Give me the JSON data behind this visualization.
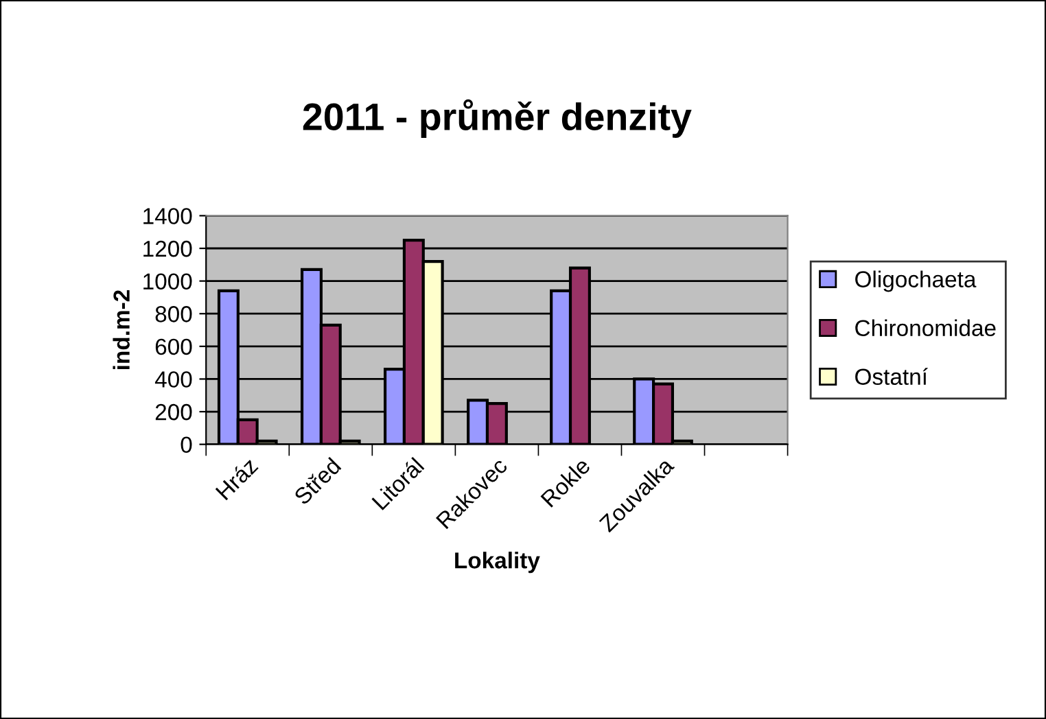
{
  "chart_data": {
    "type": "bar",
    "title": "2011 - průměr denzity",
    "xlabel": "Lokality",
    "ylabel": "ind.m-2",
    "categories": [
      "Hráz",
      "Střed",
      "Litorál",
      "Rakovec",
      "Rokle",
      "Zouvalka",
      null
    ],
    "series": [
      {
        "name": "Oligochaeta",
        "color": "#9999ff",
        "values": [
          940,
          1070,
          460,
          270,
          940,
          400,
          null
        ]
      },
      {
        "name": "Chironomidae",
        "color": "#993366",
        "values": [
          150,
          730,
          1250,
          250,
          1080,
          370,
          null
        ]
      },
      {
        "name": "Ostatní",
        "color": "#ffffcc",
        "values": [
          20,
          20,
          1120,
          null,
          null,
          20,
          null
        ]
      }
    ],
    "ylim": [
      0,
      1400
    ],
    "yticks": [
      0,
      200,
      400,
      600,
      800,
      1000,
      1200,
      1400
    ],
    "grid": "y",
    "legend": "right"
  }
}
